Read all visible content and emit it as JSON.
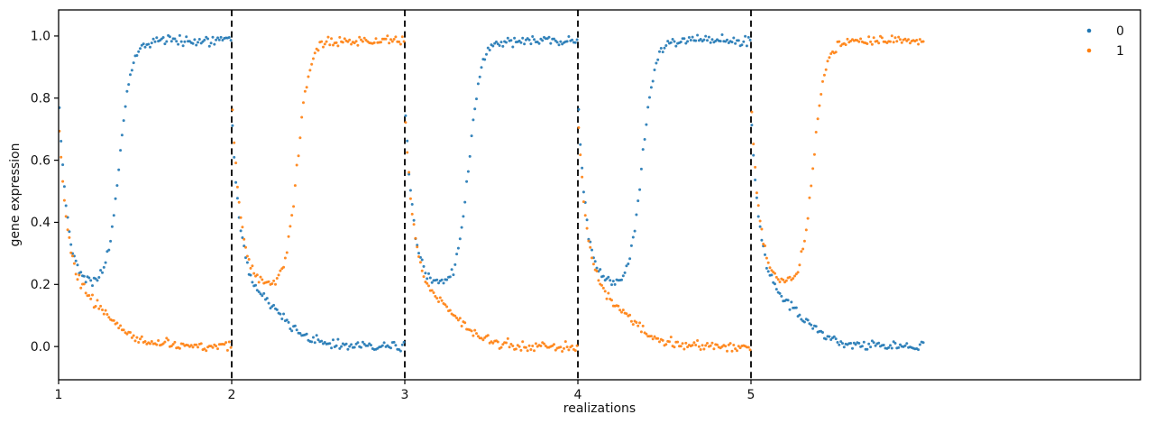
{
  "figure": {
    "background": "#ffffff"
  },
  "chart_data": {
    "type": "scatter",
    "title": "",
    "xlabel": "realizations",
    "ylabel": "gene expression",
    "xlim": [
      1,
      7.25
    ],
    "ylim": [
      -0.107,
      1.084
    ],
    "xticks": [
      1,
      2,
      3,
      4,
      5
    ],
    "xtick_labels": [
      "1",
      "2",
      "3",
      "4",
      "5"
    ],
    "yticks": [
      0.0,
      0.2,
      0.4,
      0.6,
      0.8,
      1.0
    ],
    "ytick_labels": [
      "0.0",
      "0.2",
      "0.4",
      "0.6",
      "0.8",
      "1.0"
    ],
    "grid": false,
    "axes_color": "#000000",
    "legend": {
      "position": "upper right",
      "frame": false,
      "entries": [
        {
          "label": "0",
          "color": "#1f77b4"
        },
        {
          "label": "1",
          "color": "#ff7f0e"
        }
      ]
    },
    "series": [
      {
        "name": "0",
        "color": "#1f77b4"
      },
      {
        "name": "1",
        "color": "#ff7f0e"
      }
    ],
    "separators": {
      "x": [
        2,
        3,
        4,
        5
      ],
      "color": "#000000",
      "style": "dashed"
    },
    "marker": {
      "radius": 1.5,
      "opacity": 0.9
    },
    "model": {
      "description": "Each realization n spans x in [n, n+1]. Both genes decay from ~0.8 toward a dip of ~0.19; the winner gene then rises sigmoidally to ~0.985 and the loser falls to ~0.0.",
      "points_per_series_per_segment": 105,
      "initial_decay_tau": 0.05,
      "dip_level": 0.19,
      "winner_rise_width": 0.035,
      "winner_plateau": 0.985,
      "loser_fall_center": 0.29,
      "loser_fall_width": 0.09,
      "loser_plateau": 0.0,
      "noise_sigma": 0.012,
      "seed": 42
    },
    "segments": [
      {
        "x_start": 1,
        "x_end": 2,
        "winner": "0",
        "winner_start": 0.82,
        "loser_start": 0.75,
        "rise_center": 0.35
      },
      {
        "x_start": 2,
        "x_end": 3,
        "winner": "1",
        "winner_start": 0.82,
        "loser_start": 0.76,
        "rise_center": 0.38
      },
      {
        "x_start": 3,
        "x_end": 4,
        "winner": "0",
        "winner_start": 0.8,
        "loser_start": 0.78,
        "rise_center": 0.37
      },
      {
        "x_start": 4,
        "x_end": 5,
        "winner": "0",
        "winner_start": 0.8,
        "loser_start": 0.76,
        "rise_center": 0.37
      },
      {
        "x_start": 5,
        "x_end": 6,
        "winner": "1",
        "winner_start": 0.8,
        "loser_start": 0.77,
        "rise_center": 0.36
      }
    ]
  }
}
